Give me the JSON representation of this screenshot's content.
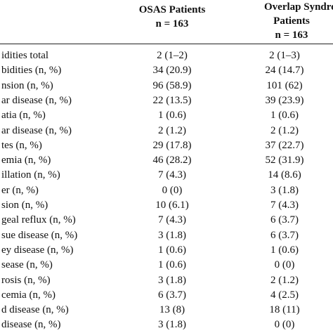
{
  "header": {
    "columns": [
      {
        "title": "OSAS Patients",
        "count": "n = 163"
      },
      {
        "title": "Overlap Syndron",
        "title2": "Patients",
        "count": "n = 163"
      }
    ]
  },
  "table": {
    "rows": [
      [
        "idities total",
        "2 (1–2)",
        "2 (1–3)"
      ],
      [
        "bidities (n, %)",
        "34 (20.9)",
        "24 (14.7)"
      ],
      [
        "nsion (n, %)",
        "96 (58.9)",
        "101 (62)"
      ],
      [
        "ar disease (n, %)",
        "22 (13.5)",
        "39 (23.9)"
      ],
      [
        "atia (n, %)",
        "1 (0.6)",
        "1 (0.6)"
      ],
      [
        "ar disease (n, %)",
        "2 (1.2)",
        "2 (1.2)"
      ],
      [
        "tes (n, %)",
        "29 (17.8)",
        "37 (22.7)"
      ],
      [
        "emia (n, %)",
        "46 (28.2)",
        "52 (31.9)"
      ],
      [
        "illation (n, %)",
        "7 (4.3)",
        "14 (8.6)"
      ],
      [
        "er (n, %)",
        "0 (0)",
        "3 (1.8)"
      ],
      [
        "sion (n, %)",
        "10 (6.1)",
        "7 (4.3)"
      ],
      [
        "geal reflux (n, %)",
        "7 (4.3)",
        "6 (3.7)"
      ],
      [
        "sue disease (n, %)",
        "3 (1.8)",
        "6 (3.7)"
      ],
      [
        "ey disease (n, %)",
        "1 (0.6)",
        "1 (0.6)"
      ],
      [
        "sease (n, %)",
        "1 (0.6)",
        "0 (0)"
      ],
      [
        "rosis (n, %)",
        "3 (1.8)",
        "2 (1.2)"
      ],
      [
        "cemia (n, %)",
        "6 (3.7)",
        "4 (2.5)"
      ],
      [
        "d disease (n, %)",
        "13 (8)",
        "18 (11)"
      ],
      [
        "disease (n, %)",
        "3 (1.8)",
        "0 (0)"
      ]
    ]
  }
}
